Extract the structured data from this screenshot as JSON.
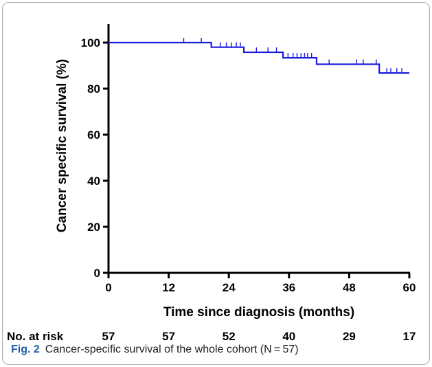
{
  "chart_data": {
    "type": "line",
    "xlabel": "Time since diagnosis (months)",
    "ylabel": "Cancer specific survival (%)",
    "xlim": [
      0,
      60
    ],
    "ylim": [
      0,
      100
    ],
    "xticks": [
      "0",
      "12",
      "24",
      "36",
      "48",
      "60"
    ],
    "yticks": [
      "0",
      "20",
      "40",
      "60",
      "80",
      "100"
    ],
    "grid": false,
    "series": [
      {
        "color": "#1a1adb",
        "steps": [
          [
            0,
            100
          ],
          [
            20.5,
            98.0
          ],
          [
            27,
            95.8
          ],
          [
            34.8,
            93.4
          ],
          [
            41.5,
            90.6
          ],
          [
            54,
            86.8
          ],
          [
            60,
            86.8
          ]
        ],
        "censor_marks": [
          [
            15,
            100
          ],
          [
            18.5,
            100
          ],
          [
            22.3,
            98.0
          ],
          [
            23.5,
            98.0
          ],
          [
            24.5,
            98.0
          ],
          [
            25.5,
            98.0
          ],
          [
            26.3,
            98.0
          ],
          [
            29.5,
            95.8
          ],
          [
            31.8,
            95.8
          ],
          [
            33.5,
            95.8
          ],
          [
            35.8,
            93.4
          ],
          [
            36.8,
            93.4
          ],
          [
            37.6,
            93.4
          ],
          [
            38.4,
            93.4
          ],
          [
            39.1,
            93.4
          ],
          [
            39.7,
            93.4
          ],
          [
            40.5,
            93.4
          ],
          [
            44,
            90.6
          ],
          [
            49.5,
            90.6
          ],
          [
            50.8,
            90.6
          ],
          [
            53.4,
            90.6
          ],
          [
            55.5,
            86.8
          ],
          [
            56.3,
            86.8
          ],
          [
            57.5,
            86.8
          ],
          [
            58.5,
            86.8
          ]
        ]
      }
    ],
    "risk_table": {
      "label": "No. at risk",
      "values": [
        "57",
        "57",
        "52",
        "40",
        "29",
        "17"
      ]
    }
  },
  "caption": {
    "label": "Fig. 2",
    "text": "Cancer-specific survival of the whole cohort (N = 57)"
  }
}
